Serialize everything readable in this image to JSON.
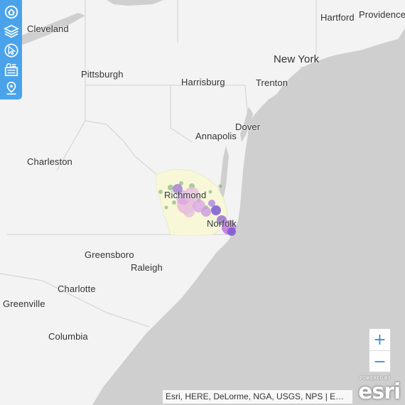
{
  "map": {
    "colors": {
      "land": "#f3f3f3",
      "water": "#cfcfcf",
      "borders": "#d0d0d0",
      "highlight_region": "#f8f8d8",
      "toolbar": "#4aa3ea",
      "zoom_glyph": "#3d8fd6"
    },
    "cities": [
      "Cleveland",
      "Pittsburgh",
      "Harrisburg",
      "Trenton",
      "New York",
      "Hartford",
      "Providence",
      "Annapolis",
      "Dover",
      "Charleston",
      "Richmond",
      "Norfolk",
      "Greensboro",
      "Raleigh",
      "Charlotte",
      "Greenville",
      "Columbia"
    ],
    "data_point_colors": [
      "#d7a6e6",
      "#9b6fd6",
      "#7a5bd4",
      "#e8b7d6",
      "#6aa86a",
      "#8fb38f",
      "#c06fe0"
    ]
  },
  "toolbar": {
    "items": [
      {
        "icon": "home-icon"
      },
      {
        "icon": "layers-icon"
      },
      {
        "icon": "select-pointer-icon"
      },
      {
        "icon": "legend-icon"
      },
      {
        "icon": "location-pin-icon"
      }
    ]
  },
  "zoom": {
    "in_label": "+",
    "out_label": "−"
  },
  "attribution": "Esri, HERE, DeLorme, NGA, USGS, NPS | E…",
  "logo": {
    "powered_by": "POWERED BY",
    "brand": "esri"
  }
}
